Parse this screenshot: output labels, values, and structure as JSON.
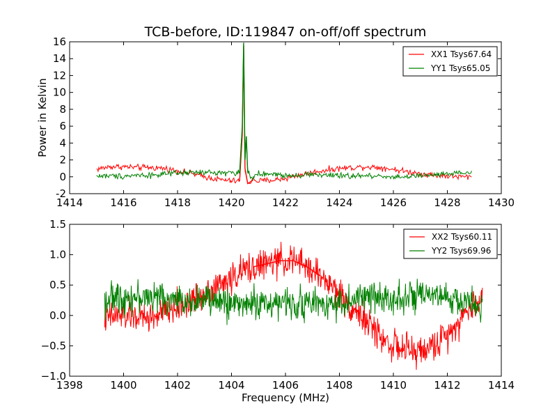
{
  "title": "TCB-before, ID:119847 on-off/off spectrum",
  "colors": {
    "xx": "#ff0000",
    "yy": "#008000",
    "axes": "#000000"
  },
  "chart_data": [
    {
      "type": "line",
      "xlabel": "",
      "ylabel": "Power in Kelvin",
      "xlim": [
        1414,
        1430
      ],
      "ylim": [
        -2,
        16
      ],
      "xticks": [
        1414,
        1416,
        1418,
        1420,
        1422,
        1424,
        1426,
        1428,
        1430
      ],
      "yticks": [
        -2,
        0,
        2,
        4,
        6,
        8,
        10,
        12,
        14,
        16
      ],
      "grid": false,
      "legend_position": "top-right",
      "series": [
        {
          "name": "XX1 Tsys67.64",
          "color": "#ff0000",
          "x": [
            1415.0,
            1415.5,
            1416.0,
            1416.5,
            1417.0,
            1417.5,
            1418.0,
            1418.5,
            1419.0,
            1419.5,
            1420.0,
            1420.3,
            1420.4,
            1420.45,
            1420.5,
            1420.6,
            1420.8,
            1421.0,
            1421.5,
            1422.0,
            1422.5,
            1423.0,
            1423.5,
            1424.0,
            1424.5,
            1425.0,
            1425.5,
            1426.0,
            1426.5,
            1427.0,
            1427.5,
            1428.0,
            1428.5,
            1428.9
          ],
          "y": [
            0.9,
            1.2,
            1.2,
            1.1,
            1.1,
            1.0,
            0.7,
            0.4,
            0.0,
            -0.3,
            -0.5,
            -0.5,
            5.0,
            15.5,
            1.0,
            -0.8,
            -0.4,
            -0.5,
            -0.4,
            -0.2,
            0.2,
            0.5,
            0.8,
            1.0,
            1.1,
            1.2,
            1.1,
            0.9,
            0.6,
            0.4,
            0.2,
            0.1,
            0.0,
            0.0
          ]
        },
        {
          "name": "YY1 Tsys65.05",
          "color": "#008000",
          "x": [
            1415.0,
            1415.5,
            1416.0,
            1416.5,
            1417.0,
            1417.5,
            1418.0,
            1418.5,
            1419.0,
            1419.5,
            1420.0,
            1420.3,
            1420.4,
            1420.45,
            1420.5,
            1420.55,
            1420.6,
            1420.8,
            1421.0,
            1421.5,
            1422.0,
            1422.5,
            1423.0,
            1423.5,
            1424.0,
            1424.5,
            1425.0,
            1425.5,
            1426.0,
            1426.5,
            1427.0,
            1427.5,
            1428.0,
            1428.5,
            1428.9
          ],
          "y": [
            0.1,
            0.1,
            0.1,
            0.2,
            0.2,
            0.3,
            0.4,
            0.5,
            0.5,
            0.5,
            0.5,
            0.4,
            6.0,
            15.9,
            2.0,
            4.8,
            0.5,
            -0.2,
            0.3,
            0.3,
            0.2,
            0.2,
            0.3,
            0.2,
            0.1,
            0.1,
            0.1,
            0.1,
            0.0,
            0.0,
            0.1,
            0.2,
            0.3,
            0.4,
            0.5
          ]
        }
      ]
    },
    {
      "type": "line",
      "xlabel": "Frequency (MHz)",
      "ylabel": "",
      "xlim": [
        1398,
        1414
      ],
      "ylim": [
        -1.0,
        1.5
      ],
      "xticks": [
        1398,
        1400,
        1402,
        1404,
        1406,
        1408,
        1410,
        1412,
        1414
      ],
      "yticks": [
        -1.0,
        -0.5,
        0.0,
        0.5,
        1.0,
        1.5
      ],
      "ytick_labels": [
        "−1.0",
        "−0.5",
        "0.0",
        "0.5",
        "1.0",
        "1.5"
      ],
      "grid": false,
      "legend_position": "top-right",
      "series": [
        {
          "name": "XX2 Tsys60.11",
          "color": "#ff0000",
          "x": [
            1399.3,
            1399.8,
            1400.3,
            1400.8,
            1401.3,
            1401.8,
            1402.3,
            1402.8,
            1403.3,
            1403.8,
            1404.3,
            1404.8,
            1405.3,
            1405.8,
            1406.3,
            1406.8,
            1407.3,
            1407.8,
            1408.3,
            1408.8,
            1409.3,
            1409.8,
            1410.3,
            1410.8,
            1411.3,
            1411.8,
            1412.3,
            1412.8,
            1413.3
          ],
          "y": [
            -0.05,
            0.0,
            0.0,
            -0.05,
            0.0,
            0.1,
            0.2,
            0.3,
            0.45,
            0.55,
            0.7,
            0.8,
            0.85,
            0.9,
            0.9,
            0.8,
            0.65,
            0.45,
            0.2,
            0.0,
            -0.25,
            -0.45,
            -0.55,
            -0.6,
            -0.55,
            -0.4,
            -0.15,
            0.1,
            0.3
          ]
        },
        {
          "name": "YY2 Tsys69.96",
          "color": "#008000",
          "x": [
            1399.3,
            1399.8,
            1400.3,
            1400.8,
            1401.3,
            1401.8,
            1402.3,
            1402.8,
            1403.3,
            1403.8,
            1404.3,
            1404.8,
            1405.3,
            1405.8,
            1406.3,
            1406.8,
            1407.3,
            1407.8,
            1408.3,
            1408.8,
            1409.3,
            1409.8,
            1410.3,
            1410.8,
            1411.3,
            1411.8,
            1412.3,
            1412.8,
            1413.3
          ],
          "y": [
            0.25,
            0.3,
            0.3,
            0.3,
            0.3,
            0.25,
            0.25,
            0.25,
            0.25,
            0.2,
            0.2,
            0.2,
            0.2,
            0.2,
            0.2,
            0.2,
            0.2,
            0.2,
            0.2,
            0.3,
            0.3,
            0.3,
            0.3,
            0.3,
            0.3,
            0.3,
            0.25,
            0.2,
            0.15
          ]
        }
      ]
    }
  ]
}
